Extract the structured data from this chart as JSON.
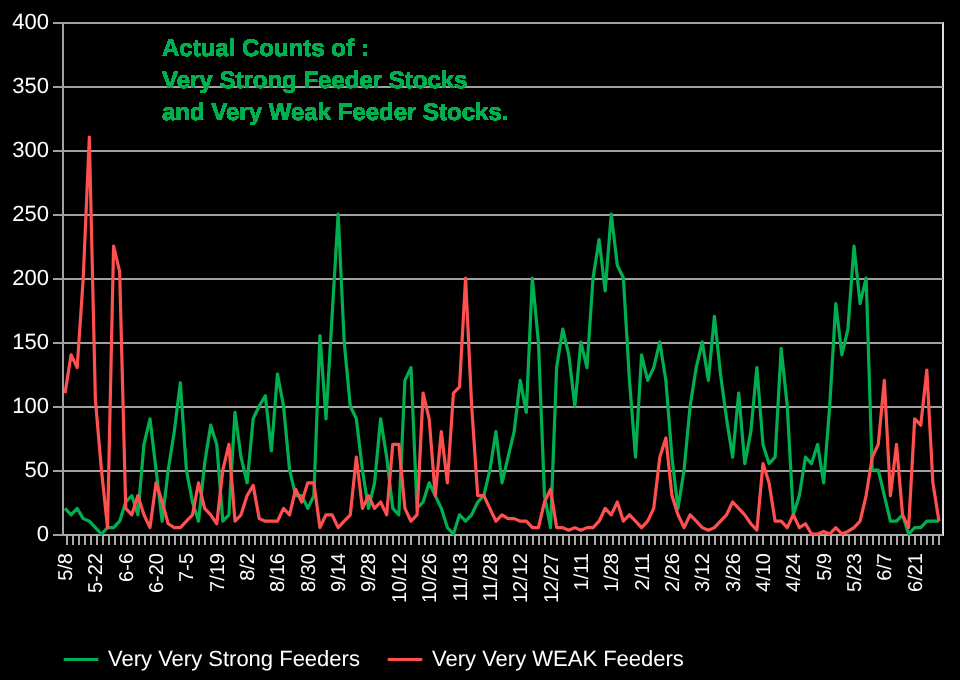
{
  "chart_data": {
    "type": "line",
    "title": "Actual Counts of :\nVery Strong  Feeder Stocks\nand Very Weak Feeder Stocks.",
    "categories": [
      "5/8",
      null,
      null,
      null,
      null,
      "5-22",
      null,
      null,
      null,
      null,
      "6-6",
      null,
      null,
      null,
      null,
      "6-20",
      null,
      null,
      null,
      null,
      "7-5",
      null,
      null,
      null,
      null,
      "7/19",
      null,
      null,
      null,
      null,
      "8/2",
      null,
      null,
      null,
      null,
      "8/16",
      null,
      null,
      null,
      null,
      "8/30",
      null,
      null,
      null,
      null,
      "9/14",
      null,
      null,
      null,
      null,
      "9/28",
      null,
      null,
      null,
      null,
      "10/12",
      null,
      null,
      null,
      null,
      "10/26",
      null,
      null,
      null,
      null,
      "11/13",
      null,
      null,
      null,
      null,
      "11/28",
      null,
      null,
      null,
      null,
      "12/12",
      null,
      null,
      null,
      null,
      "12/27",
      null,
      null,
      null,
      null,
      "1/11",
      null,
      null,
      null,
      null,
      "1/28",
      null,
      null,
      null,
      null,
      "2/11",
      null,
      null,
      null,
      null,
      "2/26",
      null,
      null,
      null,
      null,
      "3/12",
      null,
      null,
      null,
      null,
      "3/26",
      null,
      null,
      null,
      null,
      "4/10",
      null,
      null,
      null,
      null,
      "4/24",
      null,
      null,
      null,
      null,
      "5/9",
      null,
      null,
      null,
      null,
      "5/23",
      null,
      null,
      null,
      null,
      "6/7",
      null,
      null,
      null,
      null,
      "6/21",
      null,
      null,
      null,
      null
    ],
    "series": [
      {
        "name": "Very Very Strong Feeders",
        "color": "#00b050",
        "values": [
          20,
          15,
          20,
          12,
          10,
          5,
          0,
          5,
          5,
          10,
          25,
          30,
          15,
          70,
          90,
          50,
          10,
          50,
          80,
          118,
          50,
          25,
          10,
          55,
          85,
          70,
          10,
          15,
          95,
          60,
          40,
          90,
          100,
          108,
          65,
          125,
          100,
          50,
          30,
          30,
          20,
          30,
          155,
          90,
          170,
          250,
          150,
          100,
          90,
          50,
          20,
          40,
          90,
          60,
          20,
          15,
          120,
          130,
          20,
          25,
          40,
          30,
          20,
          5,
          0,
          15,
          10,
          15,
          25,
          30,
          50,
          80,
          40,
          60,
          80,
          120,
          95,
          200,
          150,
          30,
          5,
          130,
          160,
          140,
          100,
          150,
          130,
          200,
          230,
          190,
          250,
          210,
          200,
          120,
          60,
          140,
          120,
          130,
          150,
          120,
          60,
          20,
          50,
          100,
          130,
          150,
          120,
          170,
          125,
          90,
          60,
          110,
          55,
          80,
          130,
          70,
          55,
          60,
          145,
          100,
          15,
          30,
          60,
          55,
          70,
          40,
          100,
          180,
          140,
          160,
          225,
          180,
          200,
          50,
          50,
          30,
          10,
          10,
          15,
          0,
          5,
          5,
          10,
          10,
          10
        ]
      },
      {
        "name": "Very Very WEAK Feeders",
        "color": "#ff5050",
        "values": [
          110,
          140,
          130,
          200,
          310,
          105,
          50,
          5,
          225,
          205,
          20,
          15,
          30,
          15,
          5,
          40,
          25,
          8,
          5,
          5,
          10,
          15,
          40,
          20,
          15,
          8,
          50,
          70,
          10,
          15,
          30,
          38,
          12,
          10,
          10,
          10,
          20,
          15,
          35,
          25,
          40,
          40,
          5,
          15,
          15,
          5,
          10,
          15,
          60,
          20,
          30,
          20,
          25,
          15,
          70,
          70,
          20,
          10,
          15,
          110,
          90,
          30,
          80,
          40,
          110,
          115,
          200,
          100,
          30,
          30,
          20,
          10,
          15,
          12,
          12,
          10,
          10,
          5,
          5,
          25,
          35,
          5,
          5,
          3,
          5,
          3,
          5,
          5,
          10,
          20,
          15,
          25,
          10,
          15,
          10,
          5,
          10,
          20,
          60,
          75,
          30,
          15,
          5,
          15,
          10,
          5,
          3,
          5,
          10,
          15,
          25,
          20,
          15,
          8,
          3,
          55,
          40,
          10,
          10,
          5,
          15,
          5,
          8,
          0,
          0,
          2,
          0,
          5,
          0,
          2,
          5,
          10,
          30,
          60,
          70,
          120,
          30,
          70,
          15,
          5,
          90,
          85,
          128,
          40,
          10
        ]
      }
    ],
    "ylim": [
      0,
      400
    ],
    "yticks": [
      0,
      50,
      100,
      150,
      200,
      250,
      300,
      350,
      400
    ],
    "grid": "y",
    "legend": "bottom"
  }
}
